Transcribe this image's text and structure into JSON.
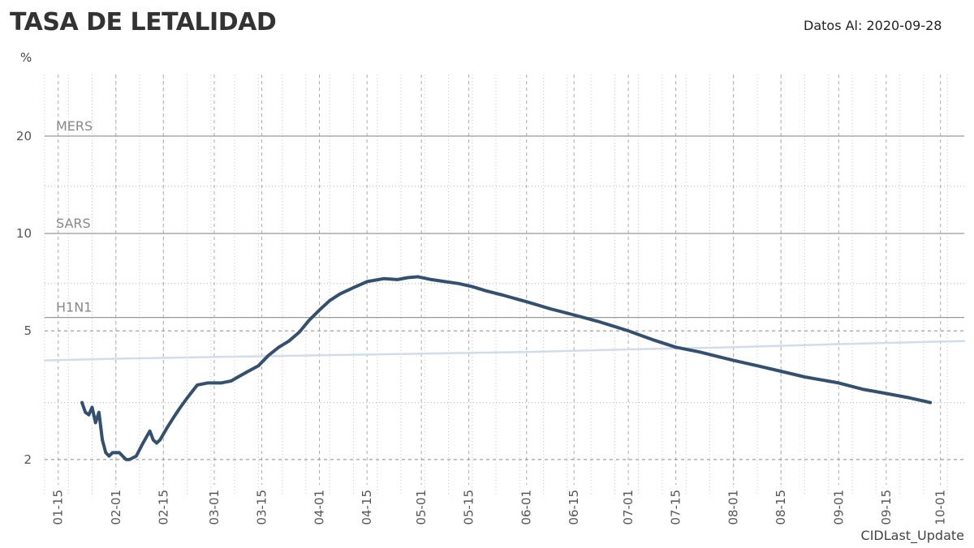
{
  "title": "TASA DE LETALIDAD",
  "date_label": "Datos Al: 2020-09-28",
  "y_unit": "%",
  "footer_label": "CIDLast_Update",
  "colors": {
    "main_series": "#34506f",
    "trend_series": "#d2dcea",
    "reference_lines": "#999999",
    "grid": "#aaaaaa"
  },
  "chart_data": {
    "type": "line",
    "title": "TASA DE LETALIDAD",
    "ylabel": "%",
    "xlabel": "",
    "y_scale": "log",
    "ylim": [
      1.75,
      31
    ],
    "xlim": [
      "2020-01-11",
      "2020-10-08"
    ],
    "y_ticks": [
      2,
      5,
      10,
      20
    ],
    "x_tick_labels": [
      "01-15",
      "02-01",
      "02-15",
      "03-01",
      "03-15",
      "04-01",
      "04-15",
      "05-01",
      "05-15",
      "06-01",
      "06-15",
      "07-01",
      "07-15",
      "08-01",
      "08-15",
      "09-01",
      "09-15",
      "10-01"
    ],
    "reference_lines": [
      {
        "label": "MERS",
        "value": 20
      },
      {
        "label": "SARS",
        "value": 10
      },
      {
        "label": "H1N1",
        "value": 5.5
      }
    ],
    "series": [
      {
        "x": [
          "2020-01-22",
          "2020-01-23",
          "2020-01-24",
          "2020-01-25",
          "2020-01-26",
          "2020-01-27",
          "2020-01-28",
          "2020-01-29",
          "2020-01-30",
          "2020-01-31",
          "2020-02-02",
          "2020-02-04",
          "2020-02-05",
          "2020-02-07",
          "2020-02-09",
          "2020-02-11",
          "2020-02-12",
          "2020-02-13",
          "2020-02-14",
          "2020-02-16",
          "2020-02-18",
          "2020-02-20",
          "2020-02-22",
          "2020-02-25",
          "2020-02-28",
          "2020-03-03",
          "2020-03-06",
          "2020-03-08",
          "2020-03-11",
          "2020-03-14",
          "2020-03-17",
          "2020-03-20",
          "2020-03-23",
          "2020-03-26",
          "2020-03-29",
          "2020-04-01",
          "2020-04-04",
          "2020-04-07",
          "2020-04-11",
          "2020-04-15",
          "2020-04-20",
          "2020-04-24",
          "2020-04-27",
          "2020-04-30",
          "2020-05-04",
          "2020-05-08",
          "2020-05-12",
          "2020-05-16",
          "2020-05-20",
          "2020-05-25",
          "2020-06-01",
          "2020-06-08",
          "2020-06-15",
          "2020-06-22",
          "2020-07-01",
          "2020-07-08",
          "2020-07-15",
          "2020-07-22",
          "2020-08-01",
          "2020-08-08",
          "2020-08-15",
          "2020-08-22",
          "2020-09-01",
          "2020-09-08",
          "2020-09-15",
          "2020-09-22",
          "2020-09-28"
        ],
        "values": [
          3.0,
          2.8,
          2.75,
          2.9,
          2.6,
          2.8,
          2.3,
          2.1,
          2.05,
          2.1,
          2.1,
          2.0,
          2.0,
          2.05,
          2.25,
          2.45,
          2.3,
          2.25,
          2.3,
          2.5,
          2.7,
          2.9,
          3.1,
          3.4,
          3.45,
          3.45,
          3.5,
          3.6,
          3.75,
          3.9,
          4.2,
          4.45,
          4.65,
          4.95,
          5.4,
          5.8,
          6.2,
          6.5,
          6.8,
          7.1,
          7.25,
          7.2,
          7.3,
          7.35,
          7.2,
          7.1,
          7.0,
          6.85,
          6.65,
          6.45,
          6.15,
          5.85,
          5.6,
          5.35,
          5.0,
          4.7,
          4.45,
          4.3,
          4.05,
          3.9,
          3.75,
          3.6,
          3.45,
          3.3,
          3.2,
          3.1,
          3.0
        ]
      },
      {
        "x": [
          "2020-01-11",
          "2020-02-01",
          "2020-03-01",
          "2020-04-01",
          "2020-05-01",
          "2020-06-01",
          "2020-07-01",
          "2020-08-01",
          "2020-09-01",
          "2020-10-08"
        ],
        "values": [
          4.05,
          4.1,
          4.15,
          4.2,
          4.25,
          4.3,
          4.38,
          4.45,
          4.55,
          4.65
        ]
      }
    ],
    "grid": true,
    "legend": "none"
  }
}
